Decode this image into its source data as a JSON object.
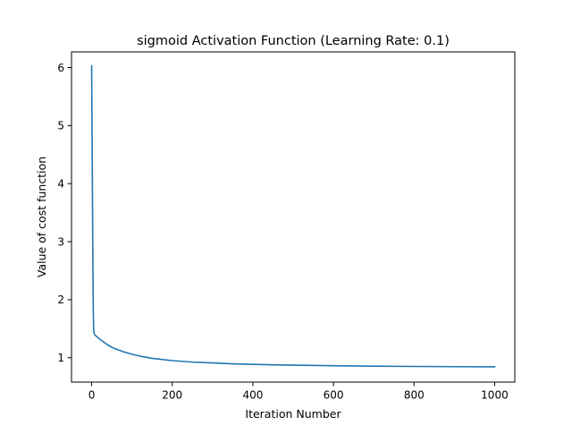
{
  "chart_data": {
    "type": "line",
    "title": "sigmoid Activation Function (Learning Rate: 0.1)",
    "xlabel": "Iteration Number",
    "ylabel": "Value of cost function",
    "xlim": [
      -50,
      1050
    ],
    "ylim": [
      0.58,
      6.27
    ],
    "xticks": [
      0,
      200,
      400,
      600,
      800,
      1000
    ],
    "yticks": [
      1,
      2,
      3,
      4,
      5,
      6
    ],
    "grid": false,
    "line_color": "#1f77b4",
    "series": [
      {
        "x": [
          0,
          1,
          2,
          3,
          4,
          5,
          6,
          8,
          10,
          15,
          20,
          30,
          40,
          50,
          60,
          80,
          100,
          125,
          150,
          200,
          250,
          300,
          350,
          400,
          450,
          500,
          600,
          700,
          800,
          900,
          1000
        ],
        "values": [
          6.03,
          4.9,
          3.8,
          2.7,
          1.85,
          1.5,
          1.42,
          1.4,
          1.38,
          1.35,
          1.32,
          1.27,
          1.22,
          1.18,
          1.15,
          1.1,
          1.06,
          1.02,
          0.99,
          0.95,
          0.925,
          0.91,
          0.895,
          0.885,
          0.878,
          0.872,
          0.862,
          0.855,
          0.85,
          0.846,
          0.843
        ]
      }
    ]
  }
}
